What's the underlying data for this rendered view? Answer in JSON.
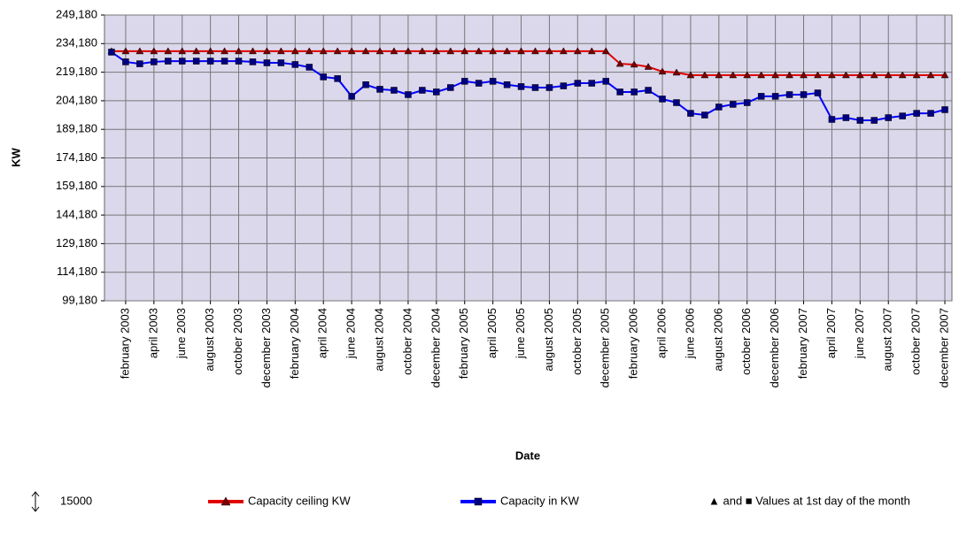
{
  "chart_data": {
    "type": "line",
    "xlabel": "Date",
    "ylabel": "KW",
    "categories": [
      null,
      "february 2003",
      null,
      "april 2003",
      null,
      "june 2003",
      null,
      "august 2003",
      null,
      "october 2003",
      null,
      "december 2003",
      null,
      "february 2004",
      null,
      "april 2004",
      null,
      "june 2004",
      null,
      "august 2004",
      null,
      "october 2004",
      null,
      "december 2004",
      null,
      "february 2005",
      null,
      "april 2005",
      null,
      "june 2005",
      null,
      "august 2005",
      null,
      "october 2005",
      null,
      "december 2005",
      null,
      "february 2006",
      null,
      "april 2006",
      null,
      "june 2006",
      null,
      "august 2006",
      null,
      "october 2006",
      null,
      "december 2006",
      null,
      "february 2007",
      null,
      "april 2007",
      null,
      "june 2007",
      null,
      "august 2007",
      null,
      "october 2007",
      null,
      "december 2007"
    ],
    "series": [
      {
        "name": "Capacity ceiling KW",
        "color": "#e00000",
        "marker_color": "#7a0000",
        "marker": "triangle",
        "values": [
          230180,
          230180,
          230180,
          230180,
          230180,
          230180,
          230180,
          230180,
          230180,
          230180,
          230180,
          230180,
          230180,
          230180,
          230180,
          230180,
          230180,
          230180,
          230180,
          230180,
          230180,
          230180,
          230180,
          230180,
          230180,
          230180,
          230180,
          230180,
          230180,
          230180,
          230180,
          230180,
          230180,
          230180,
          230180,
          230180,
          223600,
          223200,
          222000,
          219500,
          219000,
          217600,
          217600,
          217600,
          217600,
          217600,
          217600,
          217600,
          217600,
          217600,
          217600,
          217600,
          217600,
          217600,
          217600,
          217600,
          217600,
          217600,
          217600,
          217600
        ]
      },
      {
        "name": "Capacity in KW",
        "color": "#0000ff",
        "marker_color": "#000080",
        "marker": "square",
        "values": [
          229700,
          224600,
          223600,
          224600,
          225000,
          225000,
          225000,
          225000,
          225000,
          225000,
          224600,
          224100,
          224100,
          223200,
          221800,
          216700,
          215800,
          206500,
          212600,
          210200,
          209700,
          207400,
          209700,
          208800,
          211100,
          214400,
          213400,
          214400,
          212600,
          211600,
          211100,
          211100,
          212000,
          213400,
          213400,
          214400,
          208800,
          208800,
          209700,
          205100,
          203200,
          197600,
          196700,
          200900,
          202300,
          203200,
          206500,
          206500,
          207400,
          207400,
          208300,
          194400,
          195300,
          193900,
          193900,
          195300,
          196200,
          197600,
          197600,
          199500
        ]
      }
    ],
    "ylim": [
      99180,
      249180
    ],
    "yticks": [
      {
        "value": 99180,
        "label": "99,180"
      },
      {
        "value": 114180,
        "label": "114,180"
      },
      {
        "value": 129180,
        "label": "129,180"
      },
      {
        "value": 144180,
        "label": "144,180"
      },
      {
        "value": 159180,
        "label": "159,180"
      },
      {
        "value": 174180,
        "label": "174,180"
      },
      {
        "value": 189180,
        "label": "189,180"
      },
      {
        "value": 204180,
        "label": "204,180"
      },
      {
        "value": 219180,
        "label": "219,180"
      },
      {
        "value": 234180,
        "label": "234,180"
      },
      {
        "value": 249180,
        "label": "249,180"
      }
    ],
    "grid": true,
    "background": "#dcd8ec",
    "legend": {
      "position": "bottom",
      "scale_note": "15000",
      "marker_note": "▲ and ■ Values at 1st day of the month"
    }
  }
}
